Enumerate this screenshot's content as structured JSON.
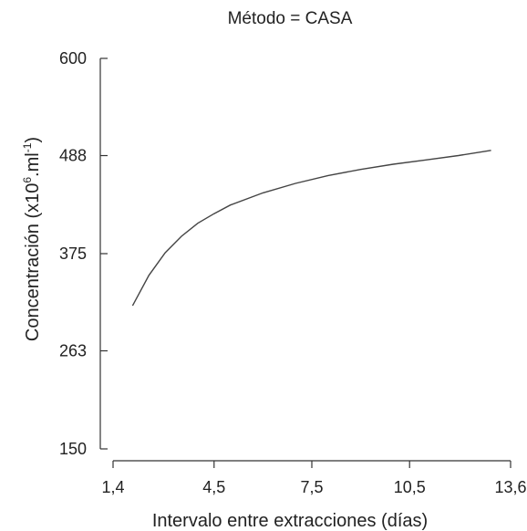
{
  "chart_data": {
    "type": "line",
    "title": "Método = CASA",
    "xlabel": "Intervalo entre extracciones (días)",
    "ylabel": "Concentración (x10",
    "ylabel_sup1": "6",
    "ylabel_mid": ".ml",
    "ylabel_sup2": "-1",
    "ylabel_end": ")",
    "xlim": [
      1.4,
      13.6
    ],
    "ylim": [
      150,
      600
    ],
    "x_ticks": [
      1.4,
      4.5,
      7.5,
      10.5,
      13.6
    ],
    "x_tick_labels": [
      "1,4",
      "4,5",
      "7,5",
      "10,5",
      "13,6"
    ],
    "y_ticks": [
      150,
      263,
      375,
      488,
      600
    ],
    "y_tick_labels": [
      "150",
      "263",
      "375",
      "488",
      "600"
    ],
    "grid": false,
    "series": [
      {
        "x": [
          2.0,
          2.5,
          3.0,
          3.5,
          4.0,
          4.5,
          5.0,
          6.0,
          7.0,
          8.0,
          9.0,
          10.0,
          11.0,
          12.0,
          13.0
        ],
        "values": [
          315,
          350,
          376,
          395,
          410,
          421,
          431,
          445,
          456,
          465,
          472,
          478,
          483,
          488,
          494
        ]
      }
    ],
    "colors": {
      "line": "#444444",
      "axis": "#333333",
      "text": "#222222"
    }
  }
}
